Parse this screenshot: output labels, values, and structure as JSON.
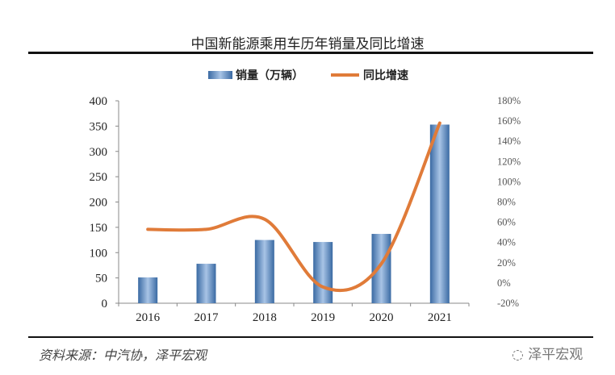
{
  "chart_data": {
    "type": "bar",
    "title": "中国新能源乘用车历年销量及同比增速",
    "categories": [
      "2016",
      "2017",
      "2018",
      "2019",
      "2020",
      "2021"
    ],
    "series": [
      {
        "name": "销量（万辆）",
        "type": "bar",
        "axis": "left",
        "values": [
          51,
          78,
          125,
          121,
          137,
          353
        ],
        "color": "#4f81bd"
      },
      {
        "name": "同比增速",
        "type": "line",
        "axis": "right",
        "smooth": true,
        "values": [
          53,
          53,
          63,
          -4,
          19,
          158
        ],
        "color": "#e07b39"
      }
    ],
    "yleft": {
      "lim": [
        0,
        400
      ],
      "ticks": [
        "0",
        "50",
        "100",
        "150",
        "200",
        "250",
        "300",
        "350",
        "400"
      ]
    },
    "yright": {
      "lim": [
        -20,
        180
      ],
      "ticks": [
        "-20%",
        "0%",
        "20%",
        "40%",
        "60%",
        "80%",
        "100%",
        "120%",
        "140%",
        "160%",
        "180%"
      ]
    },
    "legend": "top",
    "grid": false
  },
  "footer": {
    "source": "资料来源：中汽协，泽平宏观",
    "watermark": "泽平宏观"
  }
}
